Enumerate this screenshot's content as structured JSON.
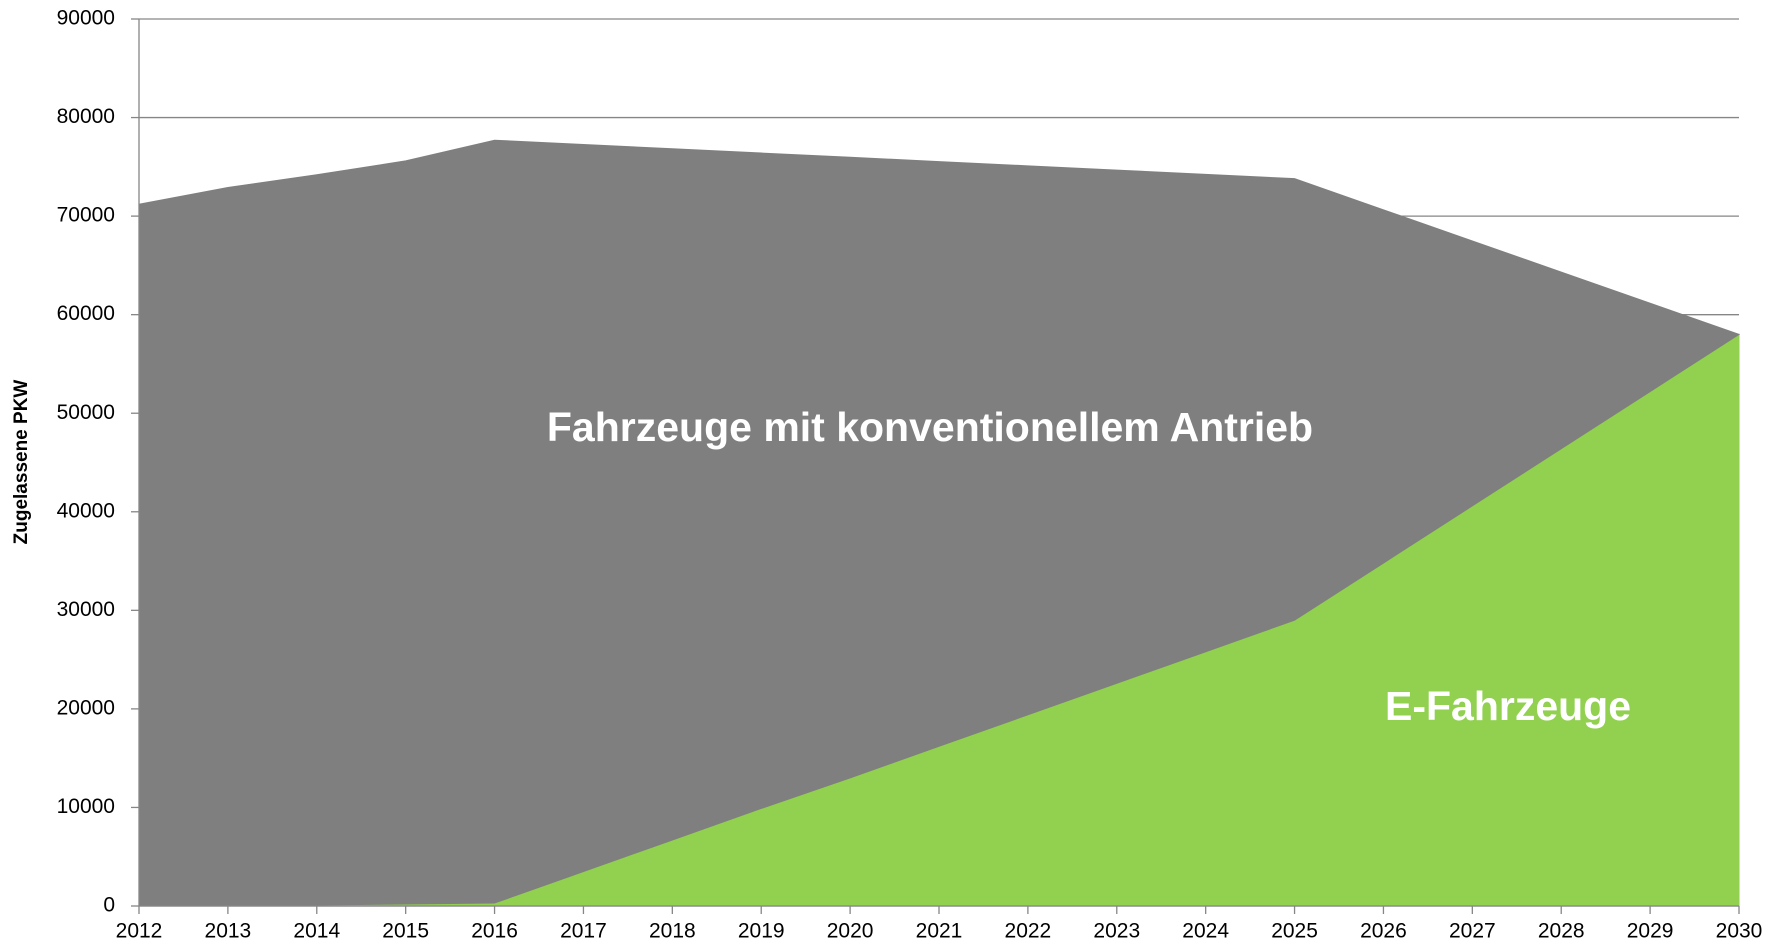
{
  "chart_data": {
    "type": "stacked_area",
    "y_label": "Zugelassene PKW",
    "categories": [
      "2012",
      "2013",
      "2014",
      "2015",
      "2016",
      "2017",
      "2018",
      "2019",
      "2020",
      "2021",
      "2022",
      "2023",
      "2024",
      "2025",
      "2026",
      "2027",
      "2028",
      "2029",
      "2030"
    ],
    "series": [
      {
        "name": "E-Fahrzeuge",
        "color": "#92d050",
        "values": [
          0,
          50,
          100,
          200,
          300,
          3500,
          6700,
          9900,
          13000,
          16200,
          19400,
          22600,
          25800,
          29000,
          34800,
          40600,
          46400,
          52200,
          58000
        ]
      },
      {
        "name": "Fahrzeuge mit konventionellem Antrieb",
        "color": "#7f7f7f",
        "values": [
          71200,
          72850,
          74100,
          75400,
          77400,
          73770,
          70130,
          66500,
          62970,
          59330,
          55700,
          52070,
          48430,
          44800,
          35840,
          26880,
          17920,
          8960,
          0
        ]
      }
    ],
    "ylim": [
      0,
      90000
    ],
    "yticks": [
      0,
      10000,
      20000,
      30000,
      40000,
      50000,
      60000,
      70000,
      80000,
      90000
    ],
    "grid": true
  }
}
